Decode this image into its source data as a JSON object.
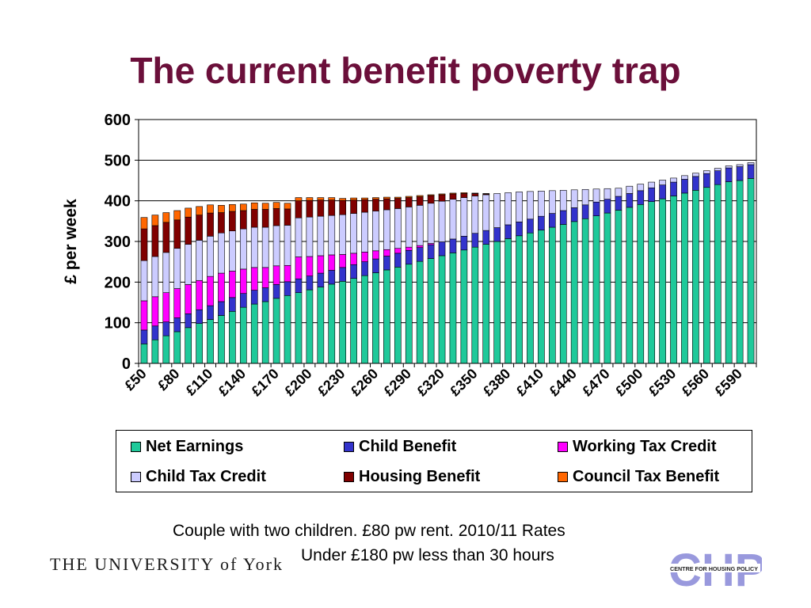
{
  "title": "The current benefit poverty trap",
  "captions": {
    "line1": "Couple with two children. £80 pw rent.  2010/11 Rates",
    "line2": "Under £180 pw less than 30 hours"
  },
  "logos": {
    "york": "THE UNIVERSITY of York",
    "chp": "CHP",
    "chp_sub": "CENTRE FOR HOUSING POLICY"
  },
  "colors": {
    "net_earnings": "#1fc99a",
    "child_benefit": "#3333cc",
    "working_tax_credit": "#ff00ff",
    "child_tax_credit": "#ccccff",
    "housing_benefit": "#800000",
    "council_tax_benefit": "#ff6600",
    "title": "#6b0f3a"
  },
  "chart_data": {
    "type": "bar",
    "stacked": true,
    "ylabel": "£ per week",
    "xlabel": "",
    "ylim": [
      0,
      600
    ],
    "yticks": [
      0,
      100,
      200,
      300,
      400,
      500,
      600
    ],
    "grid": true,
    "legend_position": "bottom",
    "x": [
      "£50",
      "£60",
      "£70",
      "£80",
      "£90",
      "£100",
      "£110",
      "£120",
      "£130",
      "£140",
      "£150",
      "£160",
      "£170",
      "£180",
      "£190",
      "£200",
      "£210",
      "£220",
      "£230",
      "£240",
      "£250",
      "£260",
      "£270",
      "£280",
      "£290",
      "£300",
      "£310",
      "£320",
      "£330",
      "£340",
      "£350",
      "£360",
      "£370",
      "£380",
      "£390",
      "£400",
      "£410",
      "£420",
      "£430",
      "£440",
      "£450",
      "£460",
      "£470",
      "£480",
      "£490",
      "£500",
      "£510",
      "£520",
      "£530",
      "£540",
      "£550",
      "£560",
      "£570",
      "£580",
      "£590",
      "£600"
    ],
    "x_tick_labels": [
      "£50",
      "£80",
      "£110",
      "£140",
      "£170",
      "£200",
      "£230",
      "£260",
      "£290",
      "£320",
      "£350",
      "£380",
      "£410",
      "£440",
      "£470",
      "£500",
      "£530",
      "£560",
      "£590"
    ],
    "series": [
      {
        "name": "Net Earnings",
        "values": [
          48,
          58,
          68,
          78,
          88,
          98,
          108,
          118,
          128,
          138,
          146,
          152,
          160,
          167,
          174,
          181,
          188,
          195,
          202,
          209,
          216,
          223,
          230,
          237,
          244,
          251,
          258,
          265,
          272,
          279,
          286,
          293,
          300,
          307,
          314,
          321,
          328,
          335,
          342,
          349,
          356,
          363,
          370,
          377,
          384,
          391,
          398,
          405,
          412,
          419,
          426,
          433,
          440,
          447,
          450,
          455
        ]
      },
      {
        "name": "Child Benefit",
        "values": [
          34,
          34,
          34,
          34,
          34,
          34,
          34,
          34,
          34,
          34,
          34,
          34,
          34,
          34,
          34,
          34,
          34,
          34,
          34,
          34,
          34,
          34,
          34,
          34,
          34,
          34,
          34,
          34,
          34,
          34,
          34,
          34,
          34,
          34,
          34,
          34,
          34,
          34,
          34,
          34,
          34,
          34,
          34,
          34,
          34,
          34,
          34,
          34,
          34,
          34,
          34,
          34,
          34,
          34,
          34,
          34
        ]
      },
      {
        "name": "Working Tax Credit",
        "values": [
          72,
          72,
          72,
          72,
          72,
          72,
          72,
          70,
          65,
          60,
          56,
          50,
          46,
          40,
          54,
          48,
          43,
          38,
          32,
          28,
          24,
          20,
          16,
          12,
          8,
          5,
          3,
          0,
          0,
          0,
          0,
          0,
          0,
          0,
          0,
          0,
          0,
          0,
          0,
          0,
          0,
          0,
          0,
          0,
          0,
          0,
          0,
          0,
          0,
          0,
          0,
          0,
          0,
          0,
          0,
          0
        ]
      },
      {
        "name": "Child Tax Credit",
        "values": [
          99,
          99,
          99,
          99,
          99,
          99,
          99,
          99,
          99,
          99,
          99,
          99,
          99,
          99,
          96,
          97,
          97,
          97,
          98,
          98,
          98,
          98,
          98,
          98,
          99,
          99,
          99,
          100,
          98,
          95,
          92,
          88,
          84,
          79,
          74,
          68,
          62,
          56,
          50,
          44,
          38,
          32,
          26,
          20,
          18,
          16,
          14,
          12,
          10,
          9,
          8,
          7,
          6,
          5,
          5,
          5
        ]
      },
      {
        "name": "Housing Benefit",
        "values": [
          78,
          76,
          74,
          70,
          67,
          62,
          57,
          50,
          48,
          45,
          44,
          44,
          42,
          40,
          42,
          41,
          40,
          38,
          35,
          33,
          31,
          29,
          27,
          25,
          23,
          21,
          19,
          16,
          13,
          10,
          6,
          2,
          0,
          0,
          0,
          0,
          0,
          0,
          0,
          0,
          0,
          0,
          0,
          0,
          0,
          0,
          0,
          0,
          0,
          0,
          0,
          0,
          0,
          0,
          0,
          0
        ]
      },
      {
        "name": "Council Tax Benefit",
        "values": [
          28,
          26,
          24,
          23,
          22,
          21,
          20,
          18,
          17,
          16,
          16,
          15,
          15,
          14,
          8,
          7,
          6,
          6,
          5,
          5,
          4,
          4,
          4,
          3,
          3,
          3,
          2,
          2,
          2,
          2,
          1,
          1,
          0,
          0,
          0,
          0,
          0,
          0,
          0,
          0,
          0,
          0,
          0,
          0,
          0,
          0,
          0,
          0,
          0,
          0,
          0,
          0,
          0,
          0,
          0,
          0
        ]
      }
    ]
  }
}
